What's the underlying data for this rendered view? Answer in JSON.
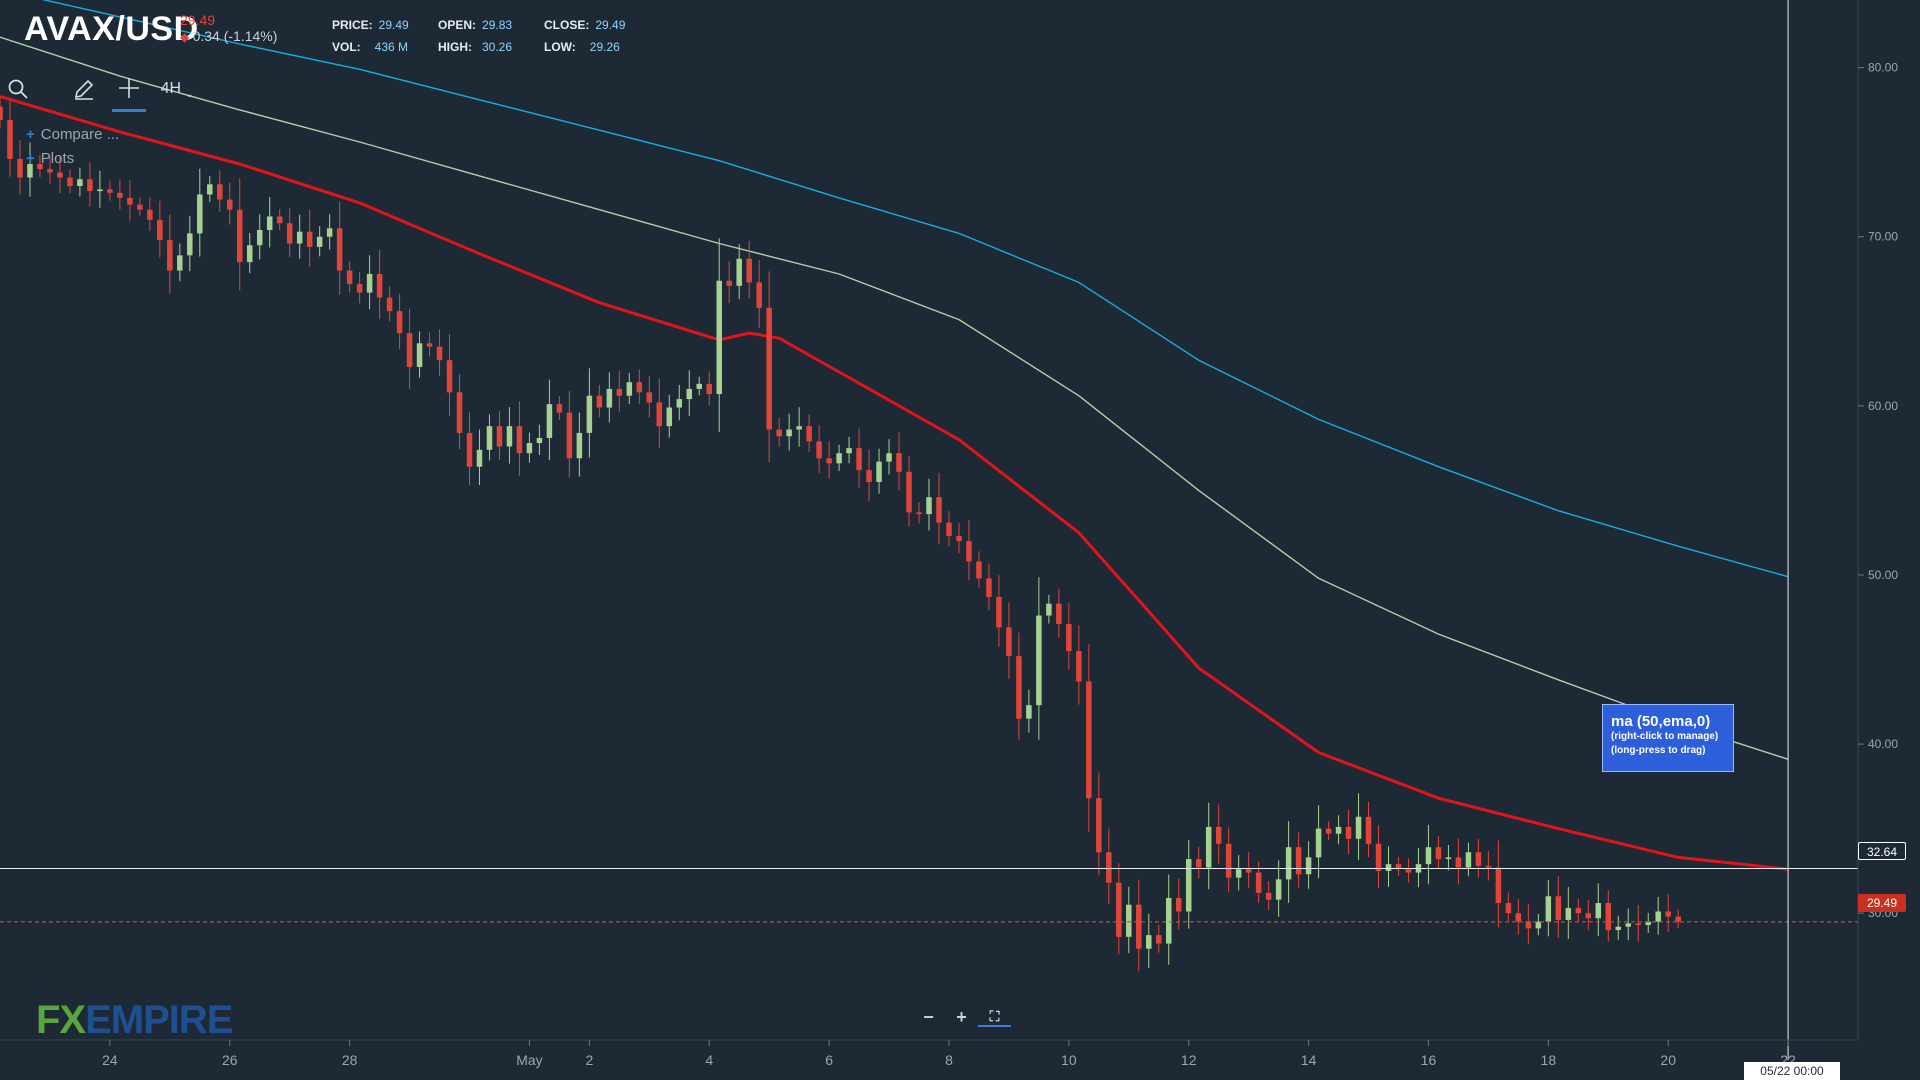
{
  "header": {
    "symbol": "AVAX/USD",
    "last_price": "29.49",
    "change": "0.34 (-1.14%)",
    "stats": [
      {
        "label": "PRICE:",
        "value": "29.49"
      },
      {
        "label": "OPEN:",
        "value": "29.83"
      },
      {
        "label": "CLOSE:",
        "value": "29.49"
      },
      {
        "label": "VOL:",
        "value": "436 M"
      },
      {
        "label": "HIGH:",
        "value": "30.26"
      },
      {
        "label": "LOW:",
        "value": "29.26"
      }
    ]
  },
  "toolbar": {
    "search_icon": "search-icon",
    "draw_icon": "pencil-icon",
    "crosshair_icon": "crosshair-icon",
    "timeframe": "4H"
  },
  "legend": {
    "compare_label": "Compare ...",
    "plots_label": "Plots"
  },
  "tooltip": {
    "title": "ma (50,ema,0)",
    "line1": "(right-click to manage)",
    "line2": "(long-press to drag)"
  },
  "logo": {
    "part1": "FX",
    "part2": "EMPIRE"
  },
  "zoom_controls": {
    "minus": "−",
    "plus": "+",
    "fullscreen": "⛶"
  },
  "price_labels": {
    "crosshair_price": "32.64",
    "last_price": "29.49"
  },
  "crosshair_datetime": "05/22 00:00",
  "colors": {
    "background": "#1e2936",
    "bull": "#a5d191",
    "bear": "#e0453a",
    "ema50": "#e0141a",
    "ma100": "#a9d4a8",
    "ma200": "#18aee0",
    "tooltip": "#2c5fd9"
  },
  "chart_data": {
    "type": "candlestick",
    "timeframe": "4H",
    "ylim": [
      22.5,
      84
    ],
    "y_ticks": [
      30,
      40,
      50,
      60,
      70,
      80
    ],
    "y_tick_labels": [
      "30.00",
      "40.00",
      "50.00",
      "60.00",
      "70.00",
      "80.00"
    ],
    "x_ticks": [
      {
        "date": "2022-04-24",
        "label": "24"
      },
      {
        "date": "2022-04-26",
        "label": "26"
      },
      {
        "date": "2022-04-28",
        "label": "28"
      },
      {
        "date": "2022-05-01",
        "label": "May"
      },
      {
        "date": "2022-05-02",
        "label": "2"
      },
      {
        "date": "2022-05-04",
        "label": "4"
      },
      {
        "date": "2022-05-06",
        "label": "6"
      },
      {
        "date": "2022-05-08",
        "label": "8"
      },
      {
        "date": "2022-05-10",
        "label": "10"
      },
      {
        "date": "2022-05-12",
        "label": "12"
      },
      {
        "date": "2022-05-14",
        "label": "14"
      },
      {
        "date": "2022-05-16",
        "label": "16"
      },
      {
        "date": "2022-05-18",
        "label": "18"
      },
      {
        "date": "2022-05-20",
        "label": "20"
      },
      {
        "date": "2022-05-22",
        "label": "22"
      }
    ],
    "xlim": [
      "2022-04-22 04:00",
      "2022-05-23 04:00"
    ],
    "candle_start": "2022-04-22 04:00",
    "candle_interval_hours": 4,
    "close": [
      76.9,
      74.6,
      73.5,
      74.3,
      74.0,
      73.8,
      73.5,
      73.0,
      73.4,
      72.7,
      72.8,
      72.6,
      72.3,
      71.9,
      71.6,
      71.0,
      69.8,
      68.0,
      68.9,
      70.2,
      72.5,
      73.1,
      72.2,
      71.6,
      68.5,
      69.5,
      70.4,
      71.2,
      70.8,
      69.6,
      70.3,
      69.4,
      70.0,
      70.5,
      68.0,
      67.2,
      66.7,
      67.8,
      66.4,
      65.6,
      64.3,
      62.3,
      63.7,
      63.5,
      62.7,
      60.8,
      58.4,
      56.4,
      57.4,
      58.8,
      57.6,
      58.8,
      57.2,
      57.8,
      58.1,
      60.1,
      59.6,
      56.9,
      58.4,
      60.6,
      59.9,
      61.0,
      60.6,
      61.4,
      60.8,
      60.2,
      58.8,
      59.9,
      60.4,
      61.0,
      61.3,
      60.7,
      67.4,
      67.1,
      68.7,
      67.3,
      65.8,
      58.6,
      58.2,
      58.6,
      58.8,
      57.9,
      56.9,
      56.6,
      57.2,
      57.5,
      56.2,
      55.5,
      56.7,
      57.2,
      56.1,
      53.7,
      53.6,
      54.6,
      53.1,
      52.3,
      52.0,
      50.8,
      49.8,
      48.7,
      46.9,
      45.2,
      41.5,
      42.3,
      47.6,
      48.3,
      47.1,
      45.5,
      43.7,
      36.8,
      33.6,
      31.8,
      28.6,
      30.5,
      27.9,
      28.7,
      28.2,
      30.9,
      30.1,
      33.2,
      32.7,
      35.1,
      34.1,
      32.1,
      32.6,
      32.4,
      31.2,
      30.8,
      32.0,
      33.9,
      32.3,
      33.3,
      35.0,
      34.7,
      35.1,
      34.4,
      35.7,
      34.1,
      32.5,
      32.9,
      32.6,
      32.4,
      32.9,
      33.9,
      33.2,
      33.3,
      32.7,
      33.6,
      32.8,
      32.7,
      30.6,
      30.0,
      29.5,
      29.1,
      29.5,
      31.0,
      29.6,
      30.3,
      30.0,
      29.7,
      30.6,
      29.0,
      29.2,
      29.4,
      29.3,
      29.5,
      30.1,
      29.8,
      29.5
    ],
    "series": [
      {
        "name": "ma (50,ema,0)",
        "x": [
          "2022-04-22 04:00",
          "2022-04-24 04:00",
          "2022-04-26 04:00",
          "2022-04-28 04:00",
          "2022-04-30 04:00",
          "2022-05-02 04:00",
          "2022-05-04 04:00",
          "2022-05-04 16:00",
          "2022-05-05 04:00",
          "2022-05-06 04:00",
          "2022-05-08 04:00",
          "2022-05-10 04:00",
          "2022-05-11 04:00",
          "2022-05-12 04:00",
          "2022-05-13 04:00",
          "2022-05-14 04:00",
          "2022-05-16 04:00",
          "2022-05-18 04:00",
          "2022-05-20 04:00",
          "2022-05-22 00:00"
        ],
        "y": [
          78.3,
          76.2,
          74.3,
          72.0,
          69.0,
          66.1,
          63.9,
          64.3,
          64.0,
          62.0,
          58.0,
          52.5,
          48.5,
          44.5,
          42.0,
          39.5,
          36.8,
          35.0,
          33.3,
          32.6
        ]
      },
      {
        "name": "",
        "x": [
          "2022-04-22 04:00",
          "2022-04-24 04:00",
          "2022-04-26 04:00",
          "2022-04-28 04:00",
          "2022-04-30 04:00",
          "2022-05-02 04:00",
          "2022-05-04 04:00",
          "2022-05-06 04:00",
          "2022-05-08 04:00",
          "2022-05-10 04:00",
          "2022-05-12 04:00",
          "2022-05-14 04:00",
          "2022-05-16 04:00",
          "2022-05-18 04:00",
          "2022-05-20 04:00",
          "2022-05-22 00:00"
        ],
        "y": [
          81.8,
          79.5,
          77.5,
          75.6,
          73.6,
          71.6,
          69.6,
          67.8,
          65.1,
          60.6,
          55.0,
          49.8,
          46.5,
          43.8,
          41.2,
          39.1
        ]
      },
      {
        "name": "",
        "x": [
          "2022-04-22 04:00",
          "2022-04-24 04:00",
          "2022-04-26 04:00",
          "2022-04-28 04:00",
          "2022-04-30 04:00",
          "2022-05-02 04:00",
          "2022-05-04 04:00",
          "2022-05-06 04:00",
          "2022-05-08 04:00",
          "2022-05-10 04:00",
          "2022-05-12 04:00",
          "2022-05-14 04:00",
          "2022-05-16 04:00",
          "2022-05-18 04:00",
          "2022-05-20 04:00",
          "2022-05-22 00:00"
        ],
        "y": [
          84.6,
          83.0,
          81.4,
          79.9,
          78.1,
          76.3,
          74.5,
          72.3,
          70.2,
          67.3,
          62.7,
          59.2,
          56.4,
          53.8,
          51.7,
          49.9
        ]
      }
    ],
    "horizontal_lines": [
      {
        "label": "32.64",
        "y": 32.64
      },
      {
        "label": "29.49",
        "y": 29.49
      }
    ],
    "crosshair_time": "2022-05-22 00:00",
    "grid": false
  }
}
